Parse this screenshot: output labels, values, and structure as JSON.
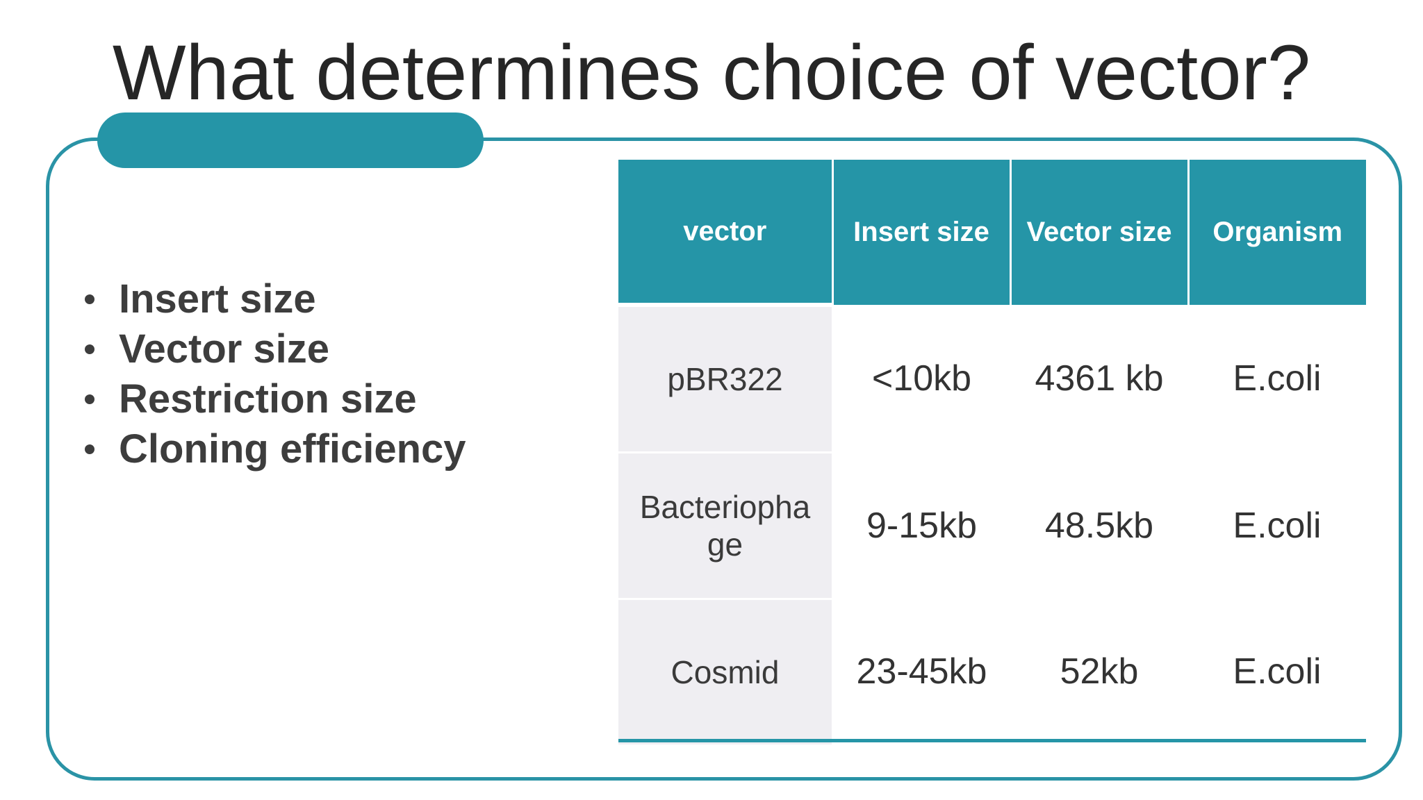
{
  "title": "What determines choice of vector?",
  "bullets": [
    "Insert size",
    "Vector size",
    "Restriction size",
    "Cloning efficiency"
  ],
  "table": {
    "headers": [
      "vector",
      "Insert size",
      "Vector size",
      "Organism"
    ],
    "rows": [
      [
        "pBR322",
        "<10kb",
        "4361 kb",
        "E.coli"
      ],
      [
        "Bacteriophage",
        "9-15kb",
        "48.5kb",
        "E.coli"
      ],
      [
        "Cosmid",
        "23-45kb",
        "52kb",
        "E.coli"
      ]
    ]
  },
  "colors": {
    "accent": "#2595a7",
    "frame_border": "#2a93a6",
    "first_column_fill": "#efeef2",
    "title_text": "#262626"
  }
}
